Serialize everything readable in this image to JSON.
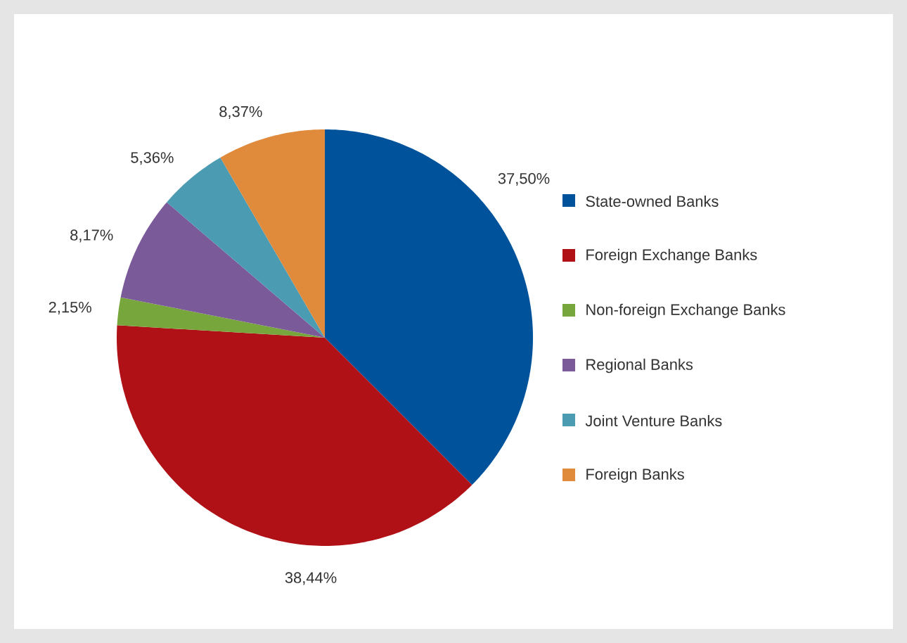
{
  "chart_data": {
    "type": "pie",
    "categories": [
      "State-owned Banks",
      "Foreign Exchange Banks",
      "Non-foreign Exchange Banks",
      "Regional Banks",
      "Joint Venture Banks",
      "Foreign Banks"
    ],
    "values": [
      37.5,
      38.44,
      2.15,
      8.17,
      5.36,
      8.37
    ],
    "value_labels": [
      "37,50%",
      "38,44%",
      "2,15%",
      "8,17%",
      "5,36%",
      "8,37%"
    ],
    "colors": [
      "#00539b",
      "#b01117",
      "#77a63c",
      "#7b5a9a",
      "#4b9bb3",
      "#e08a3c"
    ],
    "legend": "right"
  }
}
